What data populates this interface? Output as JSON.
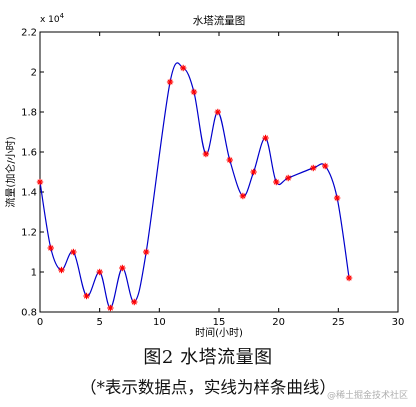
{
  "chart_data": {
    "type": "line",
    "title": "水塔流量图",
    "xlabel": "时间(小时)",
    "ylabel": "流量(加仑/小时)",
    "y_exponent_label": "x 10",
    "y_exponent_power": "4",
    "xlim": [
      0,
      30
    ],
    "ylim": [
      0.8,
      2.2
    ],
    "x_ticks": [
      0,
      5,
      10,
      15,
      20,
      25,
      30
    ],
    "y_ticks": [
      0.8,
      1,
      1.2,
      1.4,
      1.6,
      1.8,
      2,
      2.2
    ],
    "grid": false,
    "legend": "none",
    "marker_color": "#ff0000",
    "line_color": "#0000cc",
    "points": [
      {
        "x": 0.0,
        "y": 1.45
      },
      {
        "x": 0.9,
        "y": 1.12
      },
      {
        "x": 1.8,
        "y": 1.01
      },
      {
        "x": 2.8,
        "y": 1.1
      },
      {
        "x": 3.9,
        "y": 0.88
      },
      {
        "x": 5.0,
        "y": 1.0
      },
      {
        "x": 5.9,
        "y": 0.82
      },
      {
        "x": 6.9,
        "y": 1.02
      },
      {
        "x": 7.9,
        "y": 0.85
      },
      {
        "x": 8.9,
        "y": 1.1
      },
      {
        "x": 10.9,
        "y": 1.95
      },
      {
        "x": 12.0,
        "y": 2.02
      },
      {
        "x": 12.9,
        "y": 1.9
      },
      {
        "x": 13.9,
        "y": 1.59
      },
      {
        "x": 14.9,
        "y": 1.8
      },
      {
        "x": 15.9,
        "y": 1.56
      },
      {
        "x": 17.0,
        "y": 1.38
      },
      {
        "x": 17.9,
        "y": 1.5
      },
      {
        "x": 18.9,
        "y": 1.67
      },
      {
        "x": 19.8,
        "y": 1.45
      },
      {
        "x": 20.8,
        "y": 1.47
      },
      {
        "x": 22.9,
        "y": 1.52
      },
      {
        "x": 23.9,
        "y": 1.53
      },
      {
        "x": 24.9,
        "y": 1.37
      },
      {
        "x": 25.9,
        "y": 0.97
      }
    ]
  },
  "caption": {
    "line1": "图2  水塔流量图",
    "line2": "（*表示数据点，实线为样条曲线）"
  },
  "watermark": "@稀土掘金技术社区"
}
